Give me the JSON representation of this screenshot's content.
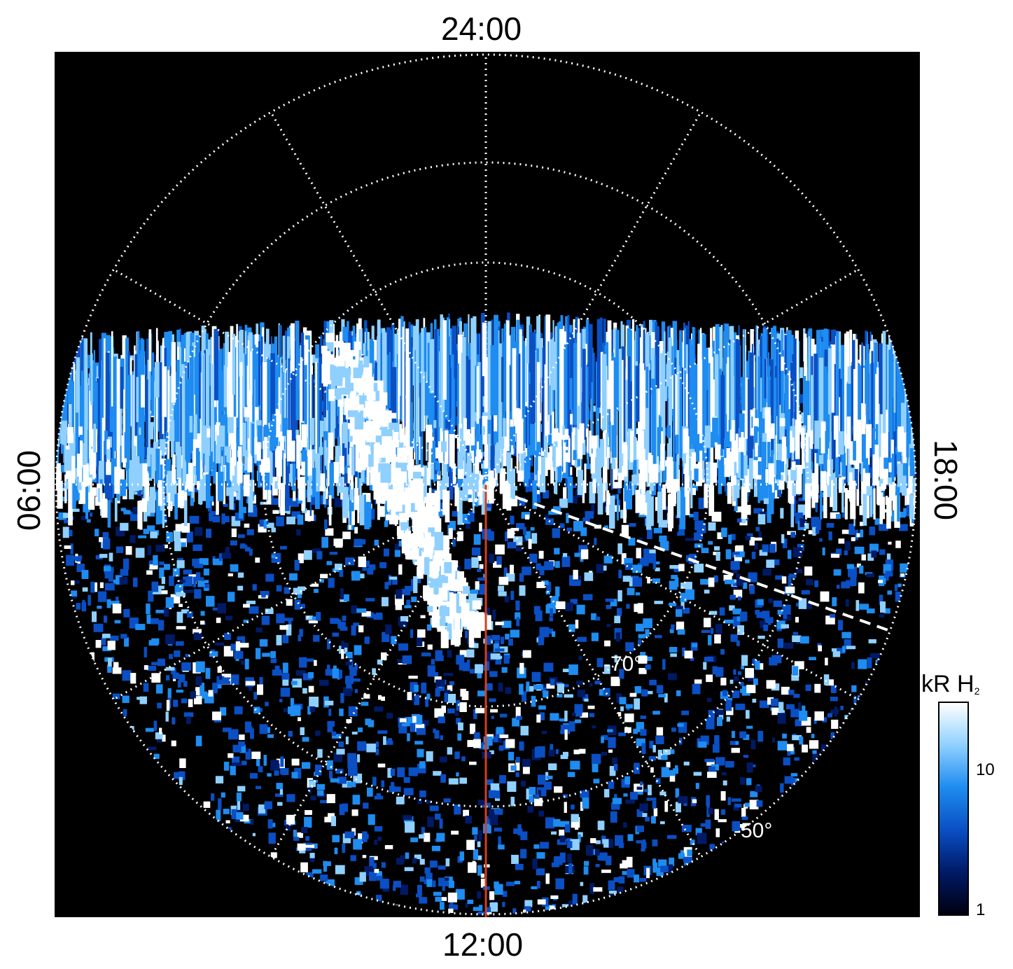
{
  "axis_labels": {
    "top": "24:00",
    "bottom": "12:00",
    "left": "06:00",
    "right": "18:00"
  },
  "latitude_labels": [
    "-70°",
    "-50°"
  ],
  "colorbar": {
    "title": "kR H",
    "title_sub": "2",
    "ticks": [
      "10",
      "1"
    ],
    "colors": [
      "#000010",
      "#001a66",
      "#0a4fc4",
      "#1e8cf0",
      "#8fd0ff",
      "#ffffff"
    ]
  },
  "colors": {
    "background": "#000000",
    "grid": "#ffffff",
    "meridian_line": "#d2401e"
  }
}
